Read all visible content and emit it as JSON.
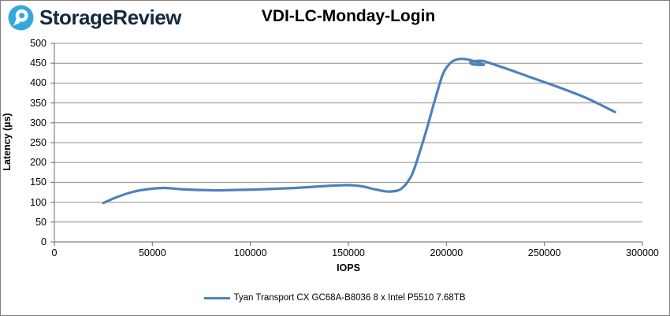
{
  "header": {
    "brand": "StorageReview",
    "brand_color": "#132a3f",
    "logo_color": "#35a7df"
  },
  "chart_data": {
    "type": "line",
    "title": "VDI-LC-Monday-Login",
    "xlabel": "IOPS",
    "ylabel": "Latency (µs)",
    "xlim": [
      0,
      300000
    ],
    "ylim": [
      0,
      500
    ],
    "x_ticks": [
      0,
      50000,
      100000,
      150000,
      200000,
      250000,
      300000
    ],
    "y_ticks": [
      0,
      50,
      100,
      150,
      200,
      250,
      300,
      350,
      400,
      450,
      500
    ],
    "grid": "horizontal",
    "legend_position": "bottom",
    "series": [
      {
        "name": "Tyan Transport CX GC68A-B8036 8 x Intel P5510 7.68TB",
        "color": "#4f81bd",
        "points": [
          [
            25000,
            98
          ],
          [
            32000,
            113
          ],
          [
            40000,
            126
          ],
          [
            48000,
            133
          ],
          [
            56000,
            136
          ],
          [
            64000,
            133
          ],
          [
            73000,
            131
          ],
          [
            83000,
            130
          ],
          [
            93000,
            131
          ],
          [
            103000,
            132
          ],
          [
            113000,
            134
          ],
          [
            123000,
            136
          ],
          [
            133000,
            139
          ],
          [
            143000,
            142
          ],
          [
            150000,
            143
          ],
          [
            157000,
            140
          ],
          [
            163000,
            133
          ],
          [
            168000,
            128
          ],
          [
            172000,
            127
          ],
          [
            177000,
            134
          ],
          [
            182000,
            165
          ],
          [
            186000,
            220
          ],
          [
            190000,
            285
          ],
          [
            194000,
            355
          ],
          [
            198000,
            420
          ],
          [
            201000,
            445
          ],
          [
            204000,
            457
          ],
          [
            208000,
            461
          ],
          [
            212000,
            458
          ],
          [
            216000,
            452
          ],
          [
            219000,
            446
          ],
          [
            213500,
            447
          ],
          [
            212500,
            453
          ],
          [
            218000,
            456
          ],
          [
            223000,
            449
          ],
          [
            232000,
            434
          ],
          [
            245000,
            411
          ],
          [
            258000,
            388
          ],
          [
            272000,
            361
          ],
          [
            286000,
            327
          ]
        ]
      }
    ]
  },
  "colors": {
    "gridline": "#8f8f8f",
    "axis": "#808080",
    "frame_border": "#7f7f7f"
  }
}
